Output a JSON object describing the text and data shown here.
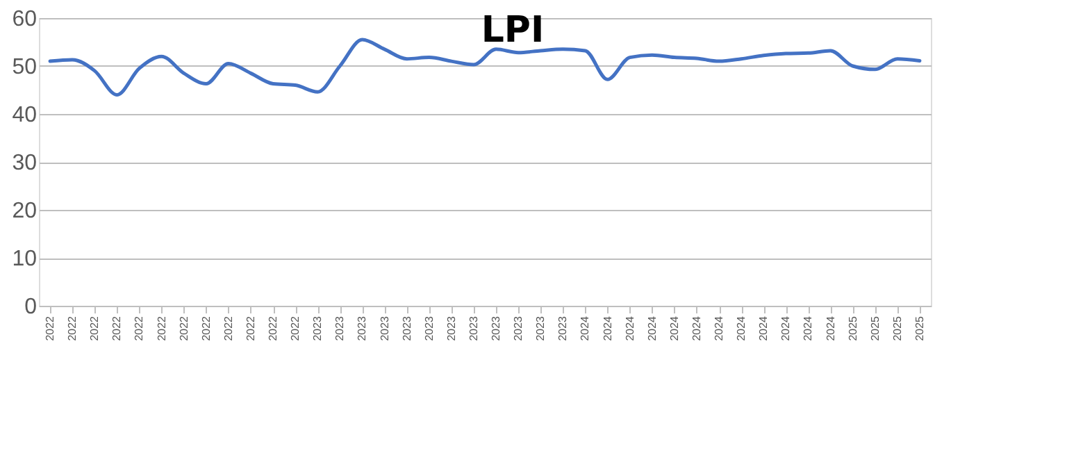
{
  "chart_data": {
    "type": "line",
    "title": "LPI",
    "categories": [
      "2022",
      "2022",
      "2022",
      "2022",
      "2022",
      "2022",
      "2022",
      "2022",
      "2022",
      "2022",
      "2022",
      "2022",
      "2023",
      "2023",
      "2023",
      "2023",
      "2023",
      "2023",
      "2023",
      "2023",
      "2023",
      "2023",
      "2023",
      "2023",
      "2024",
      "2024",
      "2024",
      "2024",
      "2024",
      "2024",
      "2024",
      "2024",
      "2024",
      "2024",
      "2024",
      "2024",
      "2025",
      "2025",
      "2025",
      "2025"
    ],
    "series": [
      {
        "color": "#4472c4",
        "values": [
          51,
          51.3,
          49,
          44,
          49.5,
          52,
          48.5,
          46.3,
          50.5,
          48.5,
          46.3,
          46,
          44.6,
          50,
          55.5,
          53.5,
          51.5,
          51.8,
          51,
          50.3,
          53.5,
          52.8,
          53.2,
          53.5,
          53.2,
          47.2,
          51.8,
          52.3,
          51.8,
          51.6,
          51,
          51.5,
          52.2,
          52.6,
          52.7,
          53.2,
          50,
          49.3,
          51.5,
          51.1
        ]
      }
    ],
    "ylim": [
      0,
      60
    ],
    "yticks": [
      0,
      10,
      20,
      30,
      40,
      50,
      60
    ],
    "grid": "y",
    "marker": "none",
    "line_style": "solid"
  }
}
